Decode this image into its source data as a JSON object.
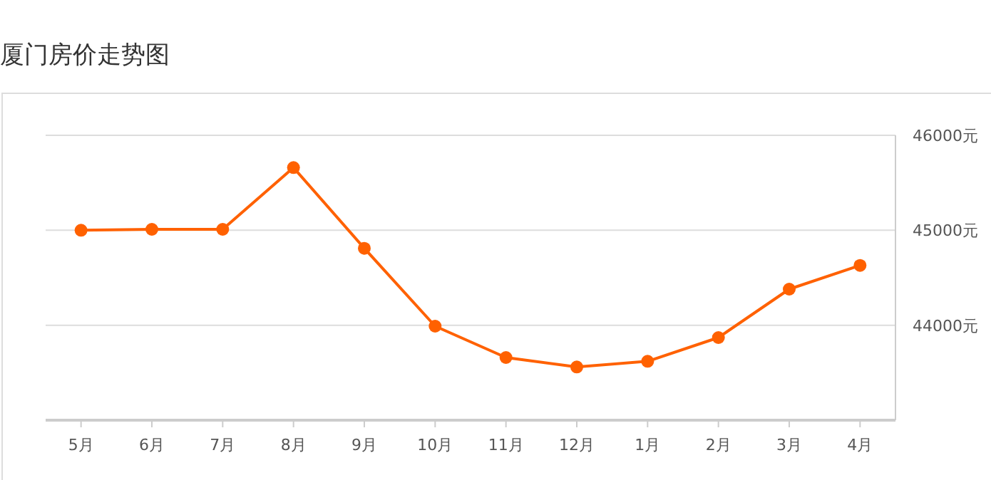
{
  "chart_data": {
    "type": "line",
    "title": "厦门房价走势图",
    "categories": [
      "5月",
      "6月",
      "7月",
      "8月",
      "9月",
      "10月",
      "11月",
      "12月",
      "1月",
      "2月",
      "3月",
      "4月"
    ],
    "series": [
      {
        "color": "#ff6100",
        "values": [
          45000,
          45010,
          45010,
          45660,
          44810,
          43990,
          43660,
          43560,
          43620,
          43870,
          44380,
          44630
        ]
      }
    ],
    "ylim": [
      43000,
      46000
    ],
    "yticks": [
      {
        "value": 44000,
        "label": "44000元"
      },
      {
        "value": 45000,
        "label": "45000元"
      },
      {
        "value": 46000,
        "label": "46000元"
      }
    ],
    "grid": "y",
    "marker": "circle",
    "line_style": "solid"
  }
}
